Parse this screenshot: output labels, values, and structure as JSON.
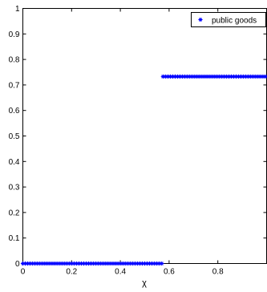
{
  "colors": {
    "series": "#0000ff",
    "axis": "#000000",
    "background": "#ffffff"
  },
  "chart_data": {
    "type": "scatter",
    "title": "",
    "xlabel": "χ",
    "ylabel": "",
    "xlim": [
      0,
      1
    ],
    "ylim": [
      0,
      1
    ],
    "grid": false,
    "legend_position": "top-right",
    "marker": "asterisk",
    "x_ticks": [
      {
        "value": 0,
        "label": "0"
      },
      {
        "value": 0.2,
        "label": "0.2"
      },
      {
        "value": 0.4,
        "label": "0.4"
      },
      {
        "value": 0.6,
        "label": "0.6"
      },
      {
        "value": 0.8,
        "label": "0.8"
      }
    ],
    "y_ticks": [
      {
        "value": 0,
        "label": "0"
      },
      {
        "value": 0.1,
        "label": "0.1"
      },
      {
        "value": 0.2,
        "label": "0.2"
      },
      {
        "value": 0.3,
        "label": "0.3"
      },
      {
        "value": 0.4,
        "label": "0.4"
      },
      {
        "value": 0.5,
        "label": "0.5"
      },
      {
        "value": 0.6,
        "label": "0.6"
      },
      {
        "value": 0.7,
        "label": "0.7"
      },
      {
        "value": 0.8,
        "label": "0.8"
      },
      {
        "value": 0.9,
        "label": "0.9"
      },
      {
        "value": 1,
        "label": "1"
      }
    ],
    "series": [
      {
        "name": "public goods",
        "points": [
          [
            0.0,
            0
          ],
          [
            0.01,
            0
          ],
          [
            0.02,
            0
          ],
          [
            0.03,
            0
          ],
          [
            0.04,
            0
          ],
          [
            0.05,
            0
          ],
          [
            0.06,
            0
          ],
          [
            0.07,
            0
          ],
          [
            0.08,
            0
          ],
          [
            0.09,
            0
          ],
          [
            0.1,
            0
          ],
          [
            0.11,
            0
          ],
          [
            0.12,
            0
          ],
          [
            0.13,
            0
          ],
          [
            0.14,
            0
          ],
          [
            0.15,
            0
          ],
          [
            0.16,
            0
          ],
          [
            0.17,
            0
          ],
          [
            0.18,
            0
          ],
          [
            0.19,
            0
          ],
          [
            0.2,
            0
          ],
          [
            0.21,
            0
          ],
          [
            0.22,
            0
          ],
          [
            0.23,
            0
          ],
          [
            0.24,
            0
          ],
          [
            0.25,
            0
          ],
          [
            0.26,
            0
          ],
          [
            0.27,
            0
          ],
          [
            0.28,
            0
          ],
          [
            0.29,
            0
          ],
          [
            0.3,
            0
          ],
          [
            0.31,
            0
          ],
          [
            0.32,
            0
          ],
          [
            0.33,
            0
          ],
          [
            0.34,
            0
          ],
          [
            0.35,
            0
          ],
          [
            0.36,
            0
          ],
          [
            0.37,
            0
          ],
          [
            0.38,
            0
          ],
          [
            0.39,
            0
          ],
          [
            0.4,
            0
          ],
          [
            0.41,
            0
          ],
          [
            0.42,
            0
          ],
          [
            0.43,
            0
          ],
          [
            0.44,
            0
          ],
          [
            0.45,
            0
          ],
          [
            0.46,
            0
          ],
          [
            0.47,
            0
          ],
          [
            0.48,
            0
          ],
          [
            0.49,
            0
          ],
          [
            0.5,
            0
          ],
          [
            0.51,
            0
          ],
          [
            0.52,
            0
          ],
          [
            0.53,
            0
          ],
          [
            0.54,
            0
          ],
          [
            0.55,
            0
          ],
          [
            0.56,
            0
          ],
          [
            0.57,
            0
          ],
          [
            0.575,
            0.733
          ],
          [
            0.585,
            0.733
          ],
          [
            0.595,
            0.733
          ],
          [
            0.605,
            0.733
          ],
          [
            0.615,
            0.733
          ],
          [
            0.625,
            0.733
          ],
          [
            0.635,
            0.733
          ],
          [
            0.645,
            0.733
          ],
          [
            0.655,
            0.733
          ],
          [
            0.665,
            0.733
          ],
          [
            0.675,
            0.733
          ],
          [
            0.685,
            0.733
          ],
          [
            0.695,
            0.733
          ],
          [
            0.705,
            0.733
          ],
          [
            0.715,
            0.733
          ],
          [
            0.725,
            0.733
          ],
          [
            0.735,
            0.733
          ],
          [
            0.745,
            0.733
          ],
          [
            0.755,
            0.733
          ],
          [
            0.765,
            0.733
          ],
          [
            0.775,
            0.733
          ],
          [
            0.785,
            0.733
          ],
          [
            0.795,
            0.733
          ],
          [
            0.805,
            0.733
          ],
          [
            0.815,
            0.733
          ],
          [
            0.825,
            0.733
          ],
          [
            0.835,
            0.733
          ],
          [
            0.845,
            0.733
          ],
          [
            0.855,
            0.733
          ],
          [
            0.865,
            0.733
          ],
          [
            0.875,
            0.733
          ],
          [
            0.885,
            0.733
          ],
          [
            0.895,
            0.733
          ],
          [
            0.905,
            0.733
          ],
          [
            0.915,
            0.733
          ],
          [
            0.925,
            0.733
          ],
          [
            0.935,
            0.733
          ],
          [
            0.945,
            0.733
          ],
          [
            0.955,
            0.733
          ],
          [
            0.965,
            0.733
          ],
          [
            0.975,
            0.733
          ],
          [
            0.985,
            0.733
          ],
          [
            0.995,
            0.733
          ]
        ]
      }
    ]
  }
}
